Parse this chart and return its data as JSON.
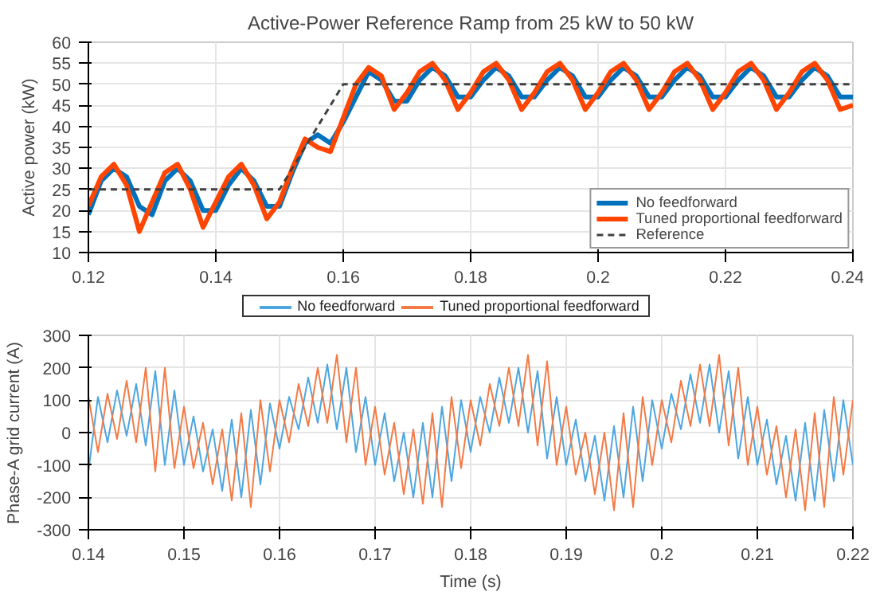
{
  "chart_data": [
    {
      "type": "line",
      "title": "Active-Power Reference Ramp from 25 kW to 50 kW",
      "ylabel": "Active power (kW)",
      "xlim": [
        0.12,
        0.24
      ],
      "ylim": [
        10,
        60
      ],
      "xticks": [
        0.12,
        0.14,
        0.16,
        0.18,
        0.2,
        0.22,
        0.24
      ],
      "yticks": [
        10,
        15,
        20,
        25,
        30,
        35,
        40,
        45,
        50,
        55,
        60
      ],
      "grid": true,
      "legend": "bottom right",
      "x": [
        0.12,
        0.122,
        0.124,
        0.126,
        0.128,
        0.13,
        0.132,
        0.134,
        0.136,
        0.138,
        0.14,
        0.142,
        0.144,
        0.146,
        0.148,
        0.15,
        0.152,
        0.154,
        0.156,
        0.158,
        0.16,
        0.162,
        0.164,
        0.166,
        0.168,
        0.17,
        0.172,
        0.174,
        0.176,
        0.178,
        0.18,
        0.182,
        0.184,
        0.186,
        0.188,
        0.19,
        0.192,
        0.194,
        0.196,
        0.198,
        0.2,
        0.202,
        0.204,
        0.206,
        0.208,
        0.21,
        0.212,
        0.214,
        0.216,
        0.218,
        0.22,
        0.222,
        0.224,
        0.226,
        0.228,
        0.23,
        0.232,
        0.234,
        0.236,
        0.238,
        0.24
      ],
      "series": [
        {
          "name": "No feedforward",
          "color": "#0072bd",
          "values": [
            19,
            27,
            30,
            28,
            21,
            19,
            27,
            30,
            27,
            20,
            20,
            26,
            30,
            27,
            21,
            21,
            29,
            36,
            38,
            36,
            41,
            47,
            53,
            51,
            46,
            46,
            51,
            54,
            52,
            47,
            47,
            51,
            54,
            52,
            47,
            47,
            51,
            54,
            52,
            47,
            47,
            51,
            54,
            52,
            47,
            47,
            51,
            54,
            52,
            47,
            47,
            51,
            54,
            52,
            47,
            47,
            51,
            54,
            52,
            47,
            47
          ]
        },
        {
          "name": "Tuned proportional feedforward",
          "color": "#ff4500",
          "values": [
            21,
            28,
            31,
            26,
            15,
            22,
            29,
            31,
            25,
            16,
            22,
            28,
            31,
            26,
            18,
            22,
            30,
            37,
            35,
            34,
            42,
            50,
            54,
            52,
            44,
            48,
            53,
            55,
            51,
            44,
            48,
            53,
            55,
            51,
            44,
            48,
            53,
            55,
            51,
            44,
            48,
            53,
            55,
            51,
            44,
            48,
            53,
            55,
            51,
            44,
            48,
            53,
            55,
            51,
            44,
            48,
            53,
            55,
            51,
            44,
            45
          ]
        },
        {
          "name": "Reference",
          "color": "#404040",
          "line_style": "dashed",
          "x": [
            0.12,
            0.15,
            0.16,
            0.24
          ],
          "values": [
            25,
            25,
            50,
            50
          ]
        }
      ]
    },
    {
      "type": "line",
      "xlabel": "Time (s)",
      "ylabel": "Phase-A grid current (A)",
      "xlim": [
        0.14,
        0.22
      ],
      "ylim": [
        -300,
        300
      ],
      "xticks": [
        0.14,
        0.15,
        0.16,
        0.17,
        0.18,
        0.19,
        0.2,
        0.21,
        0.22
      ],
      "yticks": [
        -300,
        -200,
        -100,
        0,
        100,
        200,
        300
      ],
      "grid": true,
      "legend": "top",
      "x": [
        0.14,
        0.141,
        0.142,
        0.143,
        0.144,
        0.145,
        0.146,
        0.147,
        0.148,
        0.149,
        0.15,
        0.151,
        0.152,
        0.153,
        0.154,
        0.155,
        0.156,
        0.157,
        0.158,
        0.159,
        0.16,
        0.161,
        0.162,
        0.163,
        0.164,
        0.165,
        0.166,
        0.167,
        0.168,
        0.169,
        0.17,
        0.171,
        0.172,
        0.173,
        0.174,
        0.175,
        0.176,
        0.177,
        0.178,
        0.179,
        0.18,
        0.181,
        0.182,
        0.183,
        0.184,
        0.185,
        0.186,
        0.187,
        0.188,
        0.189,
        0.19,
        0.191,
        0.192,
        0.193,
        0.194,
        0.195,
        0.196,
        0.197,
        0.198,
        0.199,
        0.2,
        0.201,
        0.202,
        0.203,
        0.204,
        0.205,
        0.206,
        0.207,
        0.208,
        0.209,
        0.21,
        0.211,
        0.212,
        0.213,
        0.214,
        0.215,
        0.216,
        0.217,
        0.218,
        0.219,
        0.22
      ],
      "series": [
        {
          "name": "No feedforward",
          "color": "#4da6e0",
          "values": [
            -120,
            110,
            -30,
            130,
            -10,
            150,
            -40,
            190,
            -100,
            130,
            -100,
            50,
            -120,
            10,
            -180,
            40,
            -200,
            70,
            -160,
            90,
            -50,
            110,
            10,
            170,
            30,
            210,
            10,
            200,
            -60,
            110,
            -100,
            60,
            -150,
            0,
            -200,
            30,
            -200,
            80,
            -150,
            100,
            -60,
            110,
            0,
            170,
            30,
            200,
            0,
            190,
            -80,
            110,
            -100,
            40,
            -150,
            -10,
            -210,
            20,
            -200,
            80,
            -150,
            100,
            -50,
            120,
            10,
            180,
            30,
            210,
            0,
            190,
            -80,
            110,
            -100,
            40,
            -160,
            -10,
            -210,
            30,
            -210,
            70,
            -150,
            100,
            -100
          ]
        },
        {
          "name": "Tuned proportional feedforward",
          "color": "#f47a45",
          "values": [
            110,
            -60,
            120,
            -20,
            160,
            -30,
            200,
            -120,
            200,
            -110,
            80,
            -110,
            30,
            -160,
            10,
            -210,
            60,
            -230,
            100,
            -120,
            100,
            -30,
            150,
            20,
            200,
            30,
            240,
            -30,
            200,
            -100,
            80,
            -130,
            30,
            -190,
            10,
            -220,
            60,
            -230,
            110,
            -110,
            100,
            -40,
            150,
            20,
            200,
            20,
            240,
            -40,
            220,
            -100,
            80,
            -130,
            0,
            -190,
            0,
            -240,
            60,
            -230,
            110,
            -100,
            100,
            -30,
            160,
            20,
            210,
            20,
            240,
            -40,
            200,
            -100,
            80,
            -130,
            20,
            -200,
            10,
            -240,
            60,
            -230,
            110,
            -130,
            100
          ]
        }
      ]
    }
  ]
}
